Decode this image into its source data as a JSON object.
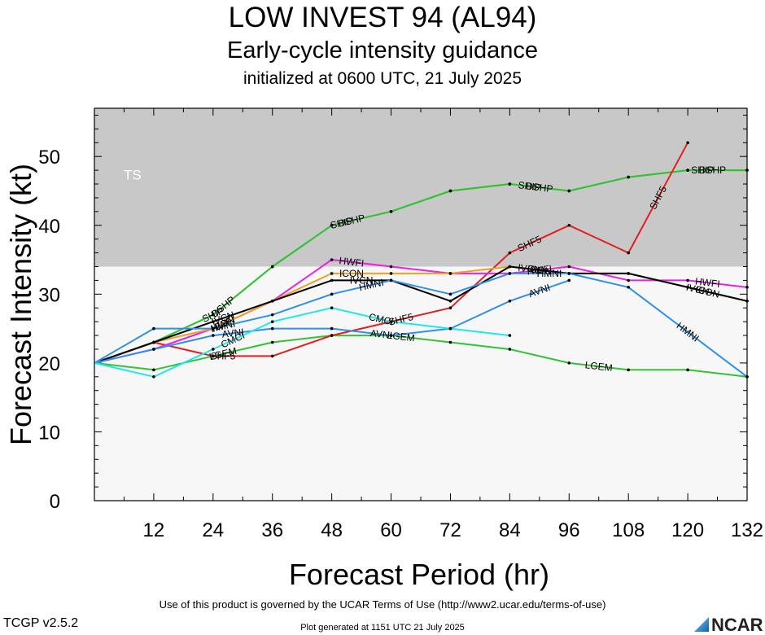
{
  "header": {
    "title": "LOW INVEST 94 (AL94)",
    "subtitle": "Early-cycle intensity guidance",
    "initialized": "initialized at 0600 UTC, 21 July 2025"
  },
  "footer": {
    "terms": "Use of this product is governed by the UCAR Terms of Use (http://www2.ucar.edu/terms-of-use)",
    "version": "TCGP v2.5.2",
    "generated": "Plot generated at 1151 UTC   21 July 2025",
    "logo_text": "NCAR"
  },
  "chart_data": {
    "type": "line",
    "title": "LOW INVEST 94 (AL94)",
    "xlabel": "Forecast Period (hr)",
    "ylabel": "Forecast Intensity (kt)",
    "xlim": [
      0,
      132
    ],
    "ylim": [
      0,
      57
    ],
    "xticks": [
      12,
      24,
      36,
      48,
      60,
      72,
      84,
      96,
      108,
      120,
      132
    ],
    "yticks": [
      0,
      10,
      20,
      30,
      40,
      50
    ],
    "bands": [
      {
        "label": "TS",
        "from": 34,
        "to": 57,
        "color": "#c8c8c8"
      }
    ],
    "below_band_color": "#f7f7f7",
    "series": [
      {
        "name": "SHIP",
        "color": "#33c233",
        "points": [
          [
            0,
            20
          ],
          [
            12,
            23
          ],
          [
            24,
            27
          ],
          [
            36,
            34
          ],
          [
            48,
            40
          ],
          [
            60,
            42
          ],
          [
            72,
            45
          ],
          [
            84,
            46
          ],
          [
            96,
            45
          ],
          [
            108,
            47
          ],
          [
            120,
            48
          ],
          [
            132,
            48
          ]
        ],
        "labels": [
          [
            24,
            "SHIP"
          ],
          [
            50,
            "SHIP"
          ],
          [
            88,
            "SHIP"
          ],
          [
            123,
            "SHIP"
          ]
        ]
      },
      {
        "name": "DSHP",
        "color": "#33c233",
        "points": [
          [
            0,
            20
          ],
          [
            12,
            23
          ],
          [
            24,
            27
          ],
          [
            36,
            34
          ],
          [
            48,
            40
          ],
          [
            60,
            42
          ],
          [
            72,
            45
          ],
          [
            84,
            46
          ],
          [
            96,
            45
          ],
          [
            108,
            47
          ],
          [
            120,
            48
          ],
          [
            132,
            48
          ]
        ],
        "labels": [
          [
            26,
            "DSHP"
          ],
          [
            52,
            "DSHP"
          ],
          [
            90,
            "DSHP"
          ],
          [
            125,
            "DSHP"
          ]
        ]
      },
      {
        "name": "LGEM",
        "color": "#33c233",
        "points": [
          [
            0,
            20
          ],
          [
            12,
            19
          ],
          [
            24,
            21
          ],
          [
            36,
            23
          ],
          [
            48,
            24
          ],
          [
            60,
            24
          ],
          [
            72,
            23
          ],
          [
            84,
            22
          ],
          [
            96,
            20
          ],
          [
            108,
            19
          ],
          [
            120,
            19
          ],
          [
            132,
            18
          ]
        ],
        "labels": [
          [
            26,
            "LGEM"
          ],
          [
            62,
            "LGEM"
          ],
          [
            102,
            "LGEM"
          ]
        ]
      },
      {
        "name": "SHF5",
        "color": "#e02020",
        "points": [
          [
            0,
            20
          ],
          [
            12,
            23
          ],
          [
            24,
            21
          ],
          [
            36,
            21
          ],
          [
            48,
            24
          ],
          [
            60,
            26
          ],
          [
            72,
            28
          ],
          [
            84,
            36
          ],
          [
            96,
            40
          ],
          [
            108,
            36
          ],
          [
            120,
            52
          ]
        ],
        "labels": [
          [
            26,
            "SHF5"
          ],
          [
            62,
            "SHF5"
          ],
          [
            88,
            "SHF5"
          ],
          [
            114,
            "SHF5"
          ]
        ]
      },
      {
        "name": "HWFI",
        "color": "#e820e8",
        "points": [
          [
            0,
            20
          ],
          [
            12,
            22
          ],
          [
            24,
            25
          ],
          [
            36,
            29
          ],
          [
            48,
            35
          ],
          [
            60,
            34
          ],
          [
            72,
            33
          ],
          [
            84,
            33
          ],
          [
            96,
            34
          ],
          [
            108,
            32
          ],
          [
            120,
            32
          ],
          [
            132,
            31
          ]
        ],
        "labels": [
          [
            26,
            "HWFI"
          ],
          [
            52,
            "HWFI"
          ],
          [
            90,
            "HWFI"
          ],
          [
            124,
            "HWFI"
          ]
        ]
      },
      {
        "name": "ICON",
        "color": "#f0a020",
        "points": [
          [
            0,
            20
          ],
          [
            12,
            23
          ],
          [
            24,
            25
          ],
          [
            36,
            29
          ],
          [
            48,
            33
          ],
          [
            60,
            33
          ],
          [
            72,
            33
          ],
          [
            84,
            34
          ],
          [
            96,
            33
          ],
          [
            108,
            33
          ],
          [
            120,
            31
          ],
          [
            132,
            29
          ]
        ],
        "labels": [
          [
            26,
            "ICON"
          ],
          [
            52,
            "ICON"
          ],
          [
            90,
            "ICON"
          ],
          [
            124,
            "ICON"
          ]
        ]
      },
      {
        "name": "IVCN",
        "color": "#000000",
        "points": [
          [
            0,
            20
          ],
          [
            12,
            23
          ],
          [
            24,
            26
          ],
          [
            36,
            29
          ],
          [
            48,
            32
          ],
          [
            60,
            32
          ],
          [
            72,
            29
          ],
          [
            84,
            34
          ],
          [
            96,
            33
          ],
          [
            108,
            33
          ],
          [
            120,
            31
          ],
          [
            132,
            29
          ]
        ],
        "labels": [
          [
            26,
            "IVCN"
          ],
          [
            54,
            "IVCN"
          ],
          [
            88,
            "IVCN"
          ],
          [
            122,
            "IVCN"
          ]
        ]
      },
      {
        "name": "HMNI",
        "color": "#3090e8",
        "points": [
          [
            0,
            20
          ],
          [
            12,
            25
          ],
          [
            24,
            25
          ],
          [
            36,
            27
          ],
          [
            48,
            30
          ],
          [
            60,
            32
          ],
          [
            72,
            30
          ],
          [
            84,
            33
          ],
          [
            96,
            33
          ],
          [
            108,
            31
          ],
          [
            132,
            18
          ]
        ],
        "labels": [
          [
            26,
            "HMNI"
          ],
          [
            56,
            "HMNI"
          ],
          [
            92,
            "HMNI"
          ],
          [
            120,
            "HMNI"
          ]
        ]
      },
      {
        "name": "AVNI",
        "color": "#3090e8",
        "points": [
          [
            0,
            20
          ],
          [
            12,
            22
          ],
          [
            24,
            24
          ],
          [
            36,
            25
          ],
          [
            48,
            25
          ],
          [
            60,
            24
          ],
          [
            72,
            25
          ],
          [
            84,
            29
          ],
          [
            96,
            32
          ]
        ],
        "labels": [
          [
            28,
            "AVNI"
          ],
          [
            58,
            "AVNI"
          ],
          [
            90,
            "AVNI"
          ]
        ]
      },
      {
        "name": "CMCI",
        "color": "#20e8e8",
        "points": [
          [
            0,
            20
          ],
          [
            12,
            18
          ],
          [
            24,
            22
          ],
          [
            36,
            26
          ],
          [
            48,
            28
          ],
          [
            60,
            26
          ],
          [
            72,
            25
          ],
          [
            84,
            24
          ]
        ],
        "labels": [
          [
            28,
            "CMCI"
          ],
          [
            58,
            "CMCI"
          ]
        ]
      }
    ]
  }
}
